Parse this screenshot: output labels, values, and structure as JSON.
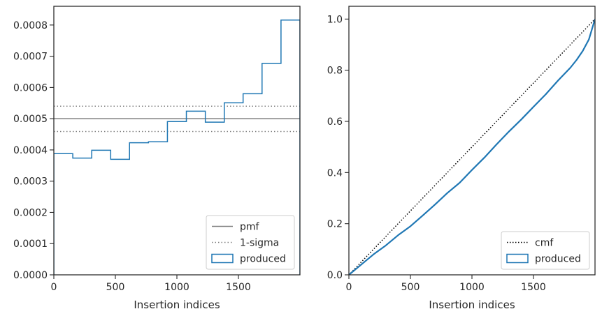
{
  "chart_data": [
    {
      "type": "line",
      "name": "left-panel",
      "xlabel": "Insertion indices",
      "ylabel": "",
      "xlim": [
        0,
        2000
      ],
      "ylim": [
        0,
        0.00086
      ],
      "xticks": [
        0,
        500,
        1000,
        1500
      ],
      "xtick_labels": [
        "0",
        "500",
        "1000",
        "1500"
      ],
      "yticks": [
        0,
        0.0001,
        0.0002,
        0.0003,
        0.0004,
        0.0005,
        0.0006,
        0.0007,
        0.0008
      ],
      "ytick_labels": [
        "0.0000",
        "0.0001",
        "0.0002",
        "0.0003",
        "0.0004",
        "0.0005",
        "0.0006",
        "0.0007",
        "0.0008"
      ],
      "grid": false,
      "legend_position": "bottom-right",
      "pmf": {
        "label": "pmf",
        "y": 0.0005,
        "color": "#808080"
      },
      "sigma": {
        "label": "1-sigma",
        "y": [
          0.000459,
          0.00054
        ],
        "color": "#808080"
      },
      "produced": {
        "label": "produced",
        "color": "#1f77b4",
        "bin_edges": [
          0,
          154,
          308,
          462,
          615,
          769,
          923,
          1077,
          1231,
          1385,
          1538,
          1692,
          1846,
          2000
        ],
        "values": [
          0.000388,
          0.000374,
          0.000399,
          0.00037,
          0.000423,
          0.000426,
          0.000491,
          0.000524,
          0.000489,
          0.000551,
          0.00058,
          0.000677,
          0.000816
        ]
      }
    },
    {
      "type": "line",
      "name": "right-panel",
      "xlabel": "Insertion indices",
      "ylabel": "",
      "xlim": [
        0,
        2000
      ],
      "ylim": [
        0,
        1.05
      ],
      "xticks": [
        0,
        500,
        1000,
        1500
      ],
      "xtick_labels": [
        "0",
        "500",
        "1000",
        "1500"
      ],
      "yticks": [
        0,
        0.2,
        0.4,
        0.6,
        0.8,
        1.0
      ],
      "ytick_labels": [
        "0.0",
        "0.2",
        "0.4",
        "0.6",
        "0.8",
        "1.0"
      ],
      "grid": false,
      "legend_position": "bottom-right",
      "cmf": {
        "label": "cmf",
        "x": [
          0,
          2000
        ],
        "y": [
          0,
          1.0
        ],
        "color": "#000000"
      },
      "produced": {
        "label": "produced",
        "color": "#1f77b4",
        "x": [
          0,
          100,
          200,
          300,
          400,
          500,
          600,
          700,
          800,
          900,
          1000,
          1100,
          1200,
          1300,
          1400,
          1500,
          1600,
          1700,
          1800,
          1850,
          1900,
          1950,
          2000
        ],
        "y": [
          0,
          0.04,
          0.08,
          0.115,
          0.155,
          0.19,
          0.232,
          0.275,
          0.32,
          0.36,
          0.41,
          0.458,
          0.51,
          0.56,
          0.607,
          0.657,
          0.706,
          0.76,
          0.81,
          0.84,
          0.875,
          0.92,
          1.0
        ]
      }
    }
  ]
}
